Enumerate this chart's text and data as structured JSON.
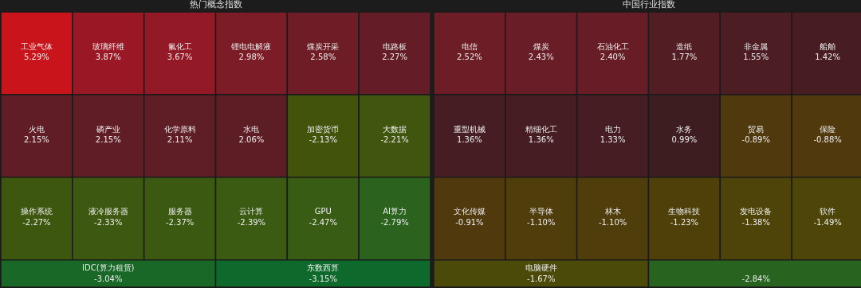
{
  "chart_data": [
    {
      "type": "other",
      "title": "热门概念指数",
      "categories": [
        "工业气体",
        "玻璃纤维",
        "氟化工",
        "锂电电解液",
        "煤炭开采",
        "电路板",
        "火电",
        "磷产业",
        "化学原料",
        "水电",
        "加密货币",
        "大数据",
        "操作系统",
        "液冷服务器",
        "服务器",
        "云计算",
        "GPU",
        "AI算力",
        "IDC(算力租赁)",
        "东数西算"
      ],
      "values": [
        5.29,
        3.87,
        3.67,
        2.98,
        2.58,
        2.27,
        2.15,
        2.15,
        2.11,
        2.06,
        -2.13,
        -2.21,
        -2.27,
        -2.33,
        -2.37,
        -2.39,
        -2.47,
        -2.79,
        -3.04,
        -3.15
      ],
      "value_labels": [
        "5.29%",
        "3.87%",
        "3.67%",
        "2.98%",
        "2.58%",
        "2.27%",
        "2.15%",
        "2.15%",
        "2.11%",
        "2.06%",
        "-2.13%",
        "-2.21%",
        "-2.27%",
        "-2.33%",
        "-2.37%",
        "-2.39%",
        "-2.47%",
        "-2.79%",
        "-3.04%",
        "-3.15%"
      ]
    },
    {
      "type": "other",
      "title": "中国行业指数",
      "categories": [
        "电信",
        "煤炭",
        "石油化工",
        "造纸",
        "非金属",
        "船舶",
        "重型机械",
        "精细化工",
        "电力",
        "水务",
        "贸易",
        "保险",
        "文化传媒",
        "半导体",
        "林木",
        "生物科技",
        "发电设备",
        "软件",
        "电脑硬件",
        null
      ],
      "values": [
        2.52,
        2.43,
        2.4,
        1.77,
        1.55,
        1.42,
        1.36,
        1.36,
        1.33,
        0.99,
        -0.89,
        -0.88,
        -0.91,
        -1.1,
        -1.1,
        -1.23,
        -1.38,
        -1.49,
        -1.67,
        -2.84
      ],
      "value_labels": [
        "2.52%",
        "2.43%",
        "2.40%",
        "1.77%",
        "1.55%",
        "1.42%",
        "1.36%",
        "1.36%",
        "1.33%",
        "0.99%",
        "-0.89%",
        "-0.88%",
        "-0.91%",
        "-1.10%",
        "-1.10%",
        "-1.23%",
        "-1.38%",
        "-1.49%",
        "-1.67%",
        "-2.84%"
      ]
    }
  ]
}
